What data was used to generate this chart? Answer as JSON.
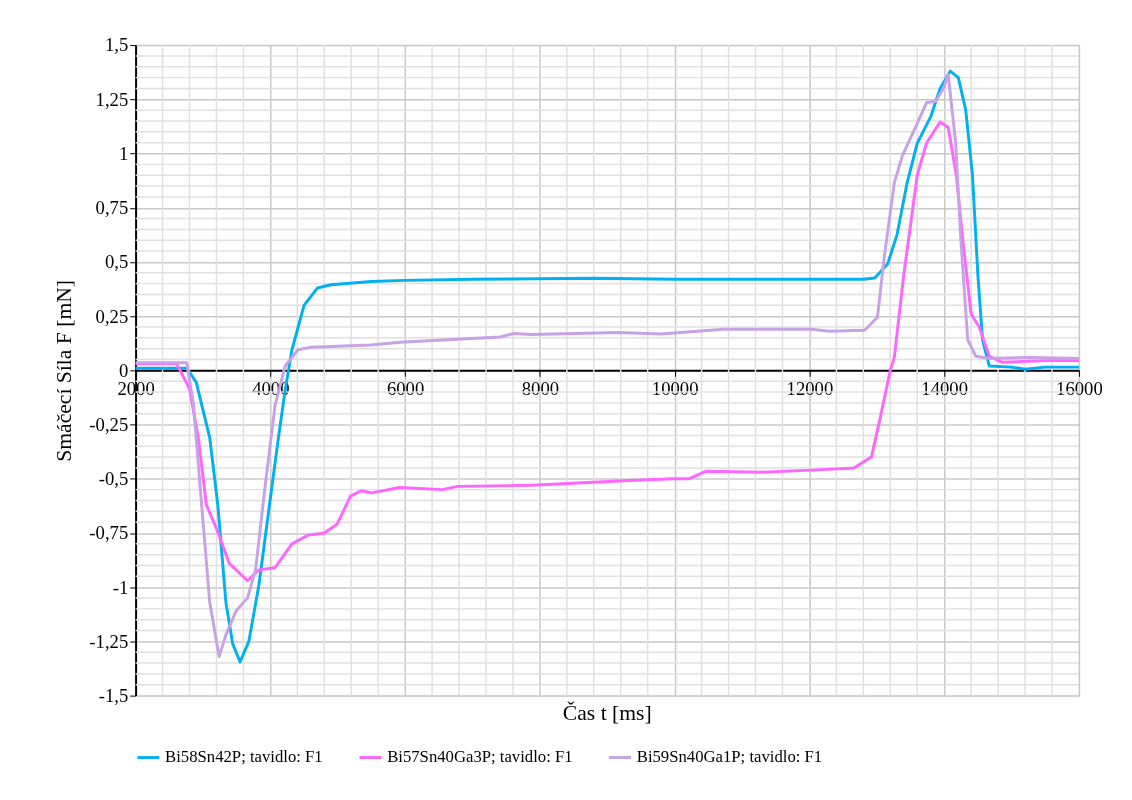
{
  "chart_data": {
    "type": "line",
    "xlabel": "Čas t [ms]",
    "ylabel": "Smáčecí Síla F [mN]",
    "xlim": [
      2000,
      16000
    ],
    "xticks": [
      2000,
      4000,
      6000,
      8000,
      10000,
      12000,
      14000,
      16000
    ],
    "ylim": [
      -1.5,
      1.5
    ],
    "yticks": [
      {
        "value": -1.5,
        "label": "-1,5"
      },
      {
        "value": -1.25,
        "label": "-1,25"
      },
      {
        "value": -1,
        "label": "-1"
      },
      {
        "value": -0.75,
        "label": "-0,75"
      },
      {
        "value": -0.5,
        "label": "-0,5"
      },
      {
        "value": -0.25,
        "label": "-0,25"
      },
      0,
      {
        "value": 0.25,
        "label": "0,25"
      },
      {
        "value": 0.5,
        "label": "0,5"
      },
      {
        "value": 0.75,
        "label": "0,75"
      },
      1,
      {
        "value": 1.25,
        "label": "1,25"
      },
      {
        "value": 1.5,
        "label": "1,5"
      }
    ],
    "grid": true,
    "legend": "bottom",
    "marker": "none",
    "line_style": "solid",
    "series": [
      {
        "name": "Bi58Sn42P; tavidlo: F1",
        "color": "#00b0f0",
        "x": [
          2000,
          2400,
          2760,
          2900,
          3100,
          3220,
          3340,
          3440,
          3550,
          3680,
          3830,
          3970,
          4120,
          4220,
          4320,
          4500,
          4700,
          4900,
          5500,
          6000,
          7000,
          8800,
          10000,
          11000,
          12000,
          12800,
          12970,
          13160,
          13300,
          13450,
          13600,
          13800,
          13940,
          14090,
          14210,
          14320,
          14420,
          14500,
          14570,
          14670,
          15000,
          15200,
          15500,
          16000
        ],
        "values": [
          0.01,
          0.01,
          0.01,
          -0.055,
          -0.31,
          -0.62,
          -1.07,
          -1.26,
          -1.345,
          -1.25,
          -0.99,
          -0.66,
          -0.31,
          -0.09,
          0.095,
          0.3,
          0.38,
          0.395,
          0.41,
          0.415,
          0.42,
          0.425,
          0.42,
          0.42,
          0.42,
          0.42,
          0.426,
          0.49,
          0.625,
          0.865,
          1.047,
          1.17,
          1.3,
          1.38,
          1.35,
          1.2,
          0.9,
          0.44,
          0.14,
          0.02,
          0.015,
          0.005,
          0.015,
          0.015
        ]
      },
      {
        "name": "Bi57Sn40Ga3P; tavidlo: F1",
        "color": "#ff66ff",
        "x": [
          2000,
          2400,
          2610,
          2800,
          2930,
          3050,
          3200,
          3390,
          3660,
          3830,
          4070,
          4320,
          4560,
          4800,
          4990,
          5190,
          5350,
          5500,
          5920,
          6550,
          6780,
          7880,
          9170,
          9960,
          10210,
          10470,
          11260,
          12030,
          12660,
          12920,
          13050,
          13200,
          13260,
          13400,
          13600,
          13740,
          13940,
          14060,
          14180,
          14280,
          14400,
          14520,
          14670,
          14860,
          15500,
          16000
        ],
        "values": [
          0.03,
          0.03,
          0.03,
          -0.085,
          -0.31,
          -0.62,
          -0.73,
          -0.89,
          -0.97,
          -0.92,
          -0.91,
          -0.8,
          -0.76,
          -0.75,
          -0.71,
          -0.58,
          -0.555,
          -0.565,
          -0.54,
          -0.55,
          -0.535,
          -0.53,
          -0.51,
          -0.5,
          -0.5,
          -0.465,
          -0.47,
          -0.46,
          -0.45,
          -0.4,
          -0.22,
          0.0,
          0.06,
          0.44,
          0.9,
          1.05,
          1.145,
          1.12,
          0.9,
          0.59,
          0.26,
          0.2,
          0.065,
          0.037,
          0.045,
          0.045
        ]
      },
      {
        "name": "Bi59Sn40Ga1P; tavidlo: F1",
        "color": "#c8a2e6",
        "x": [
          2000,
          2400,
          2760,
          2860,
          2980,
          3100,
          3240,
          3340,
          3490,
          3660,
          3780,
          3920,
          4070,
          4220,
          4410,
          4610,
          5490,
          5920,
          6560,
          7410,
          7610,
          7880,
          9170,
          9800,
          10730,
          12030,
          12300,
          12820,
          13010,
          13110,
          13260,
          13380,
          13550,
          13740,
          13870,
          13990,
          14060,
          14170,
          14250,
          14350,
          14470,
          14670,
          15300,
          16000
        ],
        "values": [
          0.035,
          0.035,
          0.035,
          -0.16,
          -0.62,
          -1.07,
          -1.32,
          -1.22,
          -1.11,
          -1.05,
          -0.92,
          -0.54,
          -0.16,
          0.02,
          0.095,
          0.107,
          0.117,
          0.13,
          0.14,
          0.154,
          0.17,
          0.165,
          0.175,
          0.168,
          0.19,
          0.19,
          0.18,
          0.185,
          0.245,
          0.52,
          0.865,
          0.99,
          1.105,
          1.235,
          1.24,
          1.3,
          1.365,
          1.05,
          0.59,
          0.14,
          0.065,
          0.055,
          0.06,
          0.055
        ]
      }
    ]
  }
}
